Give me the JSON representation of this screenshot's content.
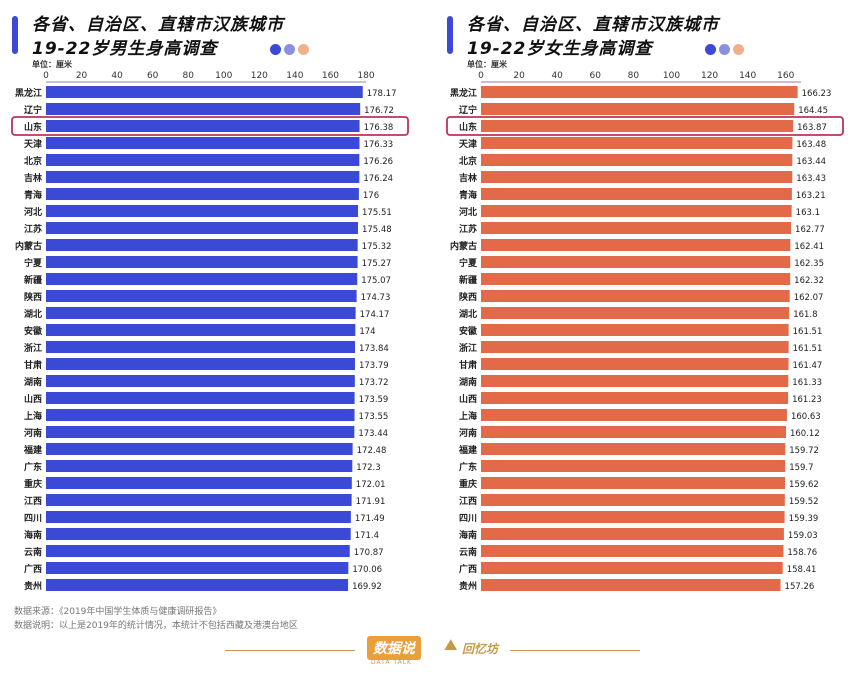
{
  "left_panel": {
    "title_line1": "各省、自治区、直辖市汉族城市",
    "title_line2": "19-22岁男生身高调查",
    "unit": "单位：厘米",
    "accent": "#3b4ad6"
  },
  "right_panel": {
    "title_line1": "各省、自治区、直辖市汉族城市",
    "title_line2": "19-22岁女生身高调查",
    "unit": "单位：厘米",
    "accent": "#e26a48"
  },
  "dots": [
    "#3b4ad6",
    "#8a8fe0",
    "#efb08a"
  ],
  "footer": {
    "source": "数据来源：《2019年中国学生体质与健康调研报告》",
    "note": "数据说明：以上是2019年的统计情况，本统计不包括西藏及港澳台地区"
  },
  "logo": {
    "name": "数据说",
    "sub": "DATA TALK",
    "partner": "回忆坊"
  },
  "chart_data": [
    {
      "type": "bar",
      "orientation": "horizontal",
      "categories": [
        "黑龙江",
        "辽宁",
        "山东",
        "天津",
        "北京",
        "吉林",
        "青海",
        "河北",
        "江苏",
        "内蒙古",
        "宁夏",
        "新疆",
        "陕西",
        "湖北",
        "安徽",
        "浙江",
        "甘肃",
        "湖南",
        "山西",
        "上海",
        "河南",
        "福建",
        "广东",
        "重庆",
        "江西",
        "四川",
        "海南",
        "云南",
        "广西",
        "贵州"
      ],
      "values": [
        178.17,
        176.72,
        176.38,
        176.33,
        176.26,
        176.24,
        176,
        175.51,
        175.48,
        175.32,
        175.27,
        175.07,
        174.73,
        174.17,
        174,
        173.84,
        173.79,
        173.72,
        173.59,
        173.55,
        173.44,
        172.48,
        172.3,
        172.01,
        171.91,
        171.49,
        171.4,
        170.87,
        170.06,
        169.92
      ],
      "xlim": [
        0,
        180
      ],
      "xticks": [
        "0",
        "20",
        "40",
        "60",
        "80",
        "100",
        "120",
        "140",
        "160",
        "180"
      ],
      "color": "#3b4ad6",
      "highlight": "山东",
      "highlight_color": "#c0305a"
    },
    {
      "type": "bar",
      "orientation": "horizontal",
      "categories": [
        "黑龙江",
        "辽宁",
        "山东",
        "天津",
        "北京",
        "吉林",
        "青海",
        "河北",
        "江苏",
        "内蒙古",
        "宁夏",
        "新疆",
        "陕西",
        "湖北",
        "安徽",
        "浙江",
        "甘肃",
        "湖南",
        "山西",
        "上海",
        "河南",
        "福建",
        "广东",
        "重庆",
        "江西",
        "四川",
        "海南",
        "云南",
        "广西",
        "贵州"
      ],
      "values": [
        166.23,
        164.45,
        163.87,
        163.48,
        163.44,
        163.43,
        163.21,
        163.1,
        162.77,
        162.41,
        162.35,
        162.32,
        162.07,
        161.8,
        161.51,
        161.51,
        161.47,
        161.33,
        161.23,
        160.63,
        160.12,
        159.72,
        159.7,
        159.62,
        159.52,
        159.39,
        159.03,
        158.76,
        158.41,
        157.26
      ],
      "xlim": [
        0,
        168
      ],
      "xticks": [
        "0",
        "20",
        "40",
        "60",
        "80",
        "100",
        "120",
        "140",
        "160"
      ],
      "color": "#e26a48",
      "highlight": "山东",
      "highlight_color": "#c0305a"
    }
  ]
}
